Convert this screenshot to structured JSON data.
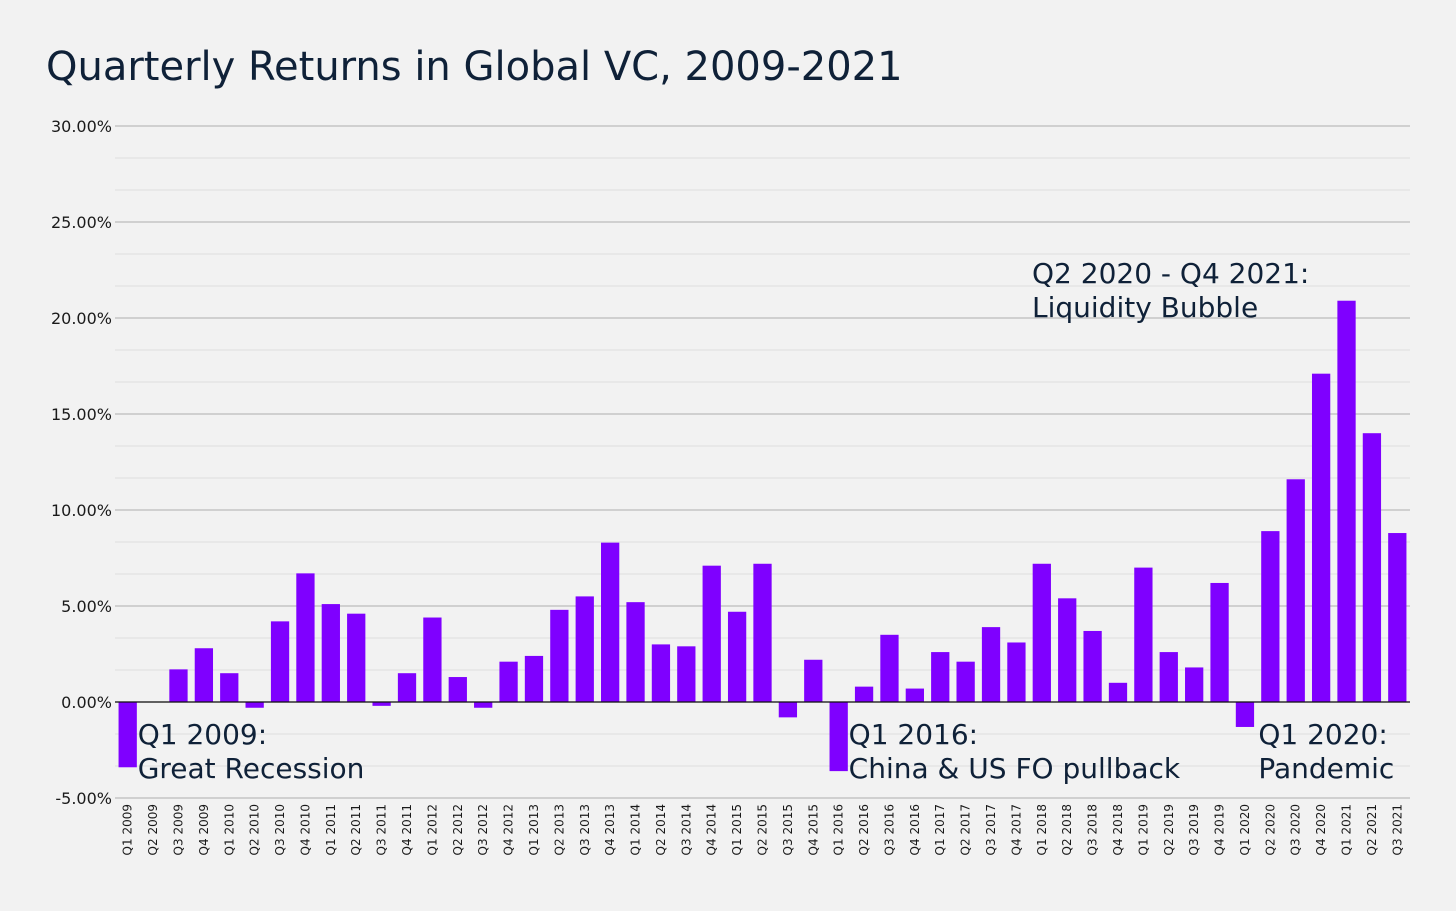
{
  "chart_data": {
    "type": "bar",
    "title": "Quarterly Returns in Global VC, 2009-2021",
    "xlabel": "",
    "ylabel": "",
    "ylim": [
      -5,
      30
    ],
    "y_ticks": [
      30,
      25,
      20,
      15,
      10,
      5,
      0,
      -5
    ],
    "y_tick_labels": [
      "30.00%",
      "25.00%",
      "20.00%",
      "15.00%",
      "10.00%",
      "5.00%",
      "0.00%",
      "-5.00%"
    ],
    "categories": [
      "Q1 2009",
      "Q2 2009",
      "Q3 2009",
      "Q4 2009",
      "Q1 2010",
      "Q2 2010",
      "Q3 2010",
      "Q4 2010",
      "Q1 2011",
      "Q2 2011",
      "Q3 2011",
      "Q4 2011",
      "Q1 2012",
      "Q2 2012",
      "Q3 2012",
      "Q4 2012",
      "Q1 2013",
      "Q2 2013",
      "Q3 2013",
      "Q4 2013",
      "Q1 2014",
      "Q2 2014",
      "Q3 2014",
      "Q4 2014",
      "Q1 2015",
      "Q2 2015",
      "Q3 2015",
      "Q4 2015",
      "Q1 2016",
      "Q2 2016",
      "Q3 2016",
      "Q4 2016",
      "Q1 2017",
      "Q2 2017",
      "Q3 2017",
      "Q4 2017",
      "Q1 2018",
      "Q2 2018",
      "Q3 2018",
      "Q4 2018",
      "Q1 2019",
      "Q2 2019",
      "Q3 2019",
      "Q4 2019",
      "Q1 2020",
      "Q2 2020",
      "Q3 2020",
      "Q4 2020",
      "Q1 2021",
      "Q2 2021",
      "Q3 2021"
    ],
    "values": [
      -3.4,
      0.0,
      1.7,
      2.8,
      1.5,
      -0.3,
      4.2,
      6.7,
      5.1,
      4.6,
      -0.2,
      1.5,
      4.4,
      1.3,
      -0.3,
      2.1,
      2.4,
      4.8,
      5.5,
      8.3,
      5.2,
      3.0,
      2.9,
      7.1,
      4.7,
      7.2,
      -0.8,
      2.2,
      -3.6,
      0.8,
      3.5,
      0.7,
      2.6,
      2.1,
      3.9,
      3.1,
      7.2,
      5.4,
      3.7,
      1.0,
      7.0,
      2.6,
      1.8,
      6.2,
      -1.3,
      8.9,
      11.6,
      17.1,
      20.9,
      14.0,
      8.8
    ],
    "bar_color": "#7f00ff",
    "grid": true,
    "annotations": [
      {
        "lines": [
          "Q1 2009:",
          "Great Recession"
        ],
        "category": "Q1 2009"
      },
      {
        "lines": [
          "Q1 2016:",
          "China & US FO pullback"
        ],
        "category": "Q1 2016"
      },
      {
        "lines": [
          "Q2 2020 - Q4 2021:",
          "Liquidity Bubble"
        ],
        "category": "Q1 2021"
      },
      {
        "lines": [
          "Q1 2020:",
          "Pandemic"
        ],
        "category": "Q1 2020"
      }
    ]
  }
}
